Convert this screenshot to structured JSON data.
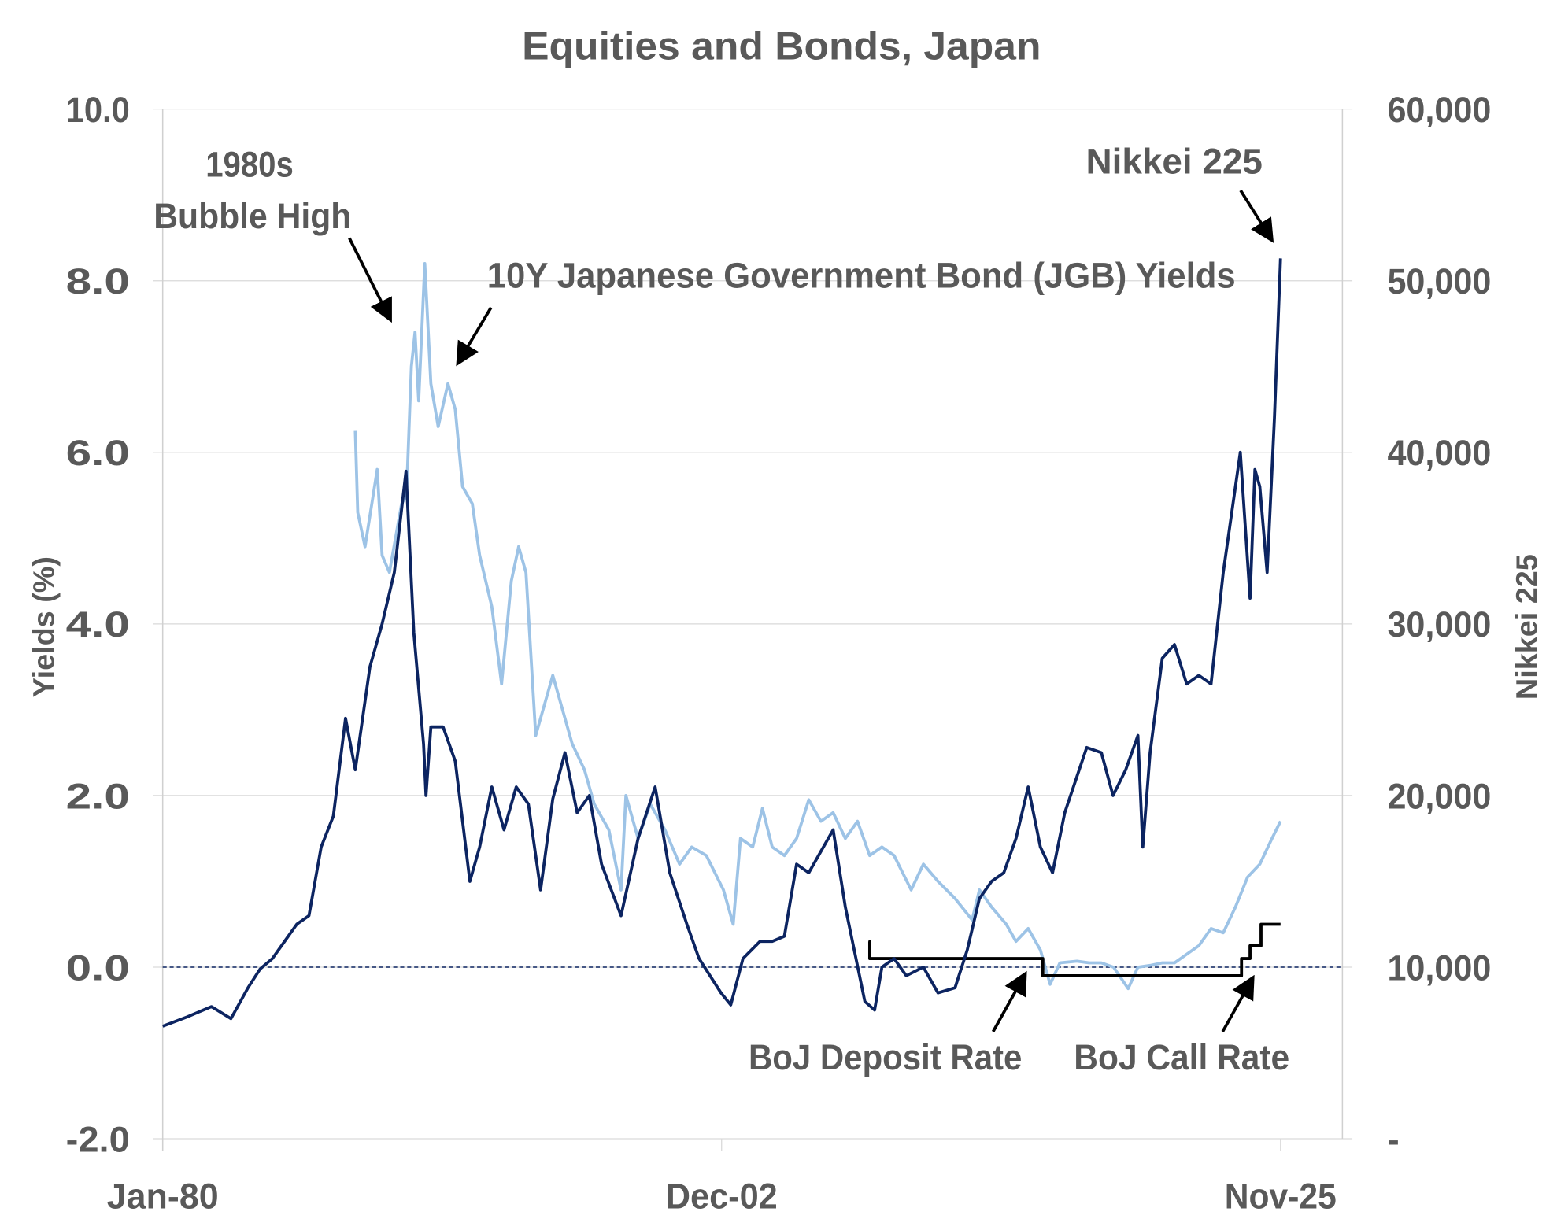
{
  "chart_data": {
    "type": "line",
    "title": "Equities and Bonds, Japan",
    "ylabel": "Yields  (%)",
    "y2label": "Nikkei  225",
    "ylim": [
      -2,
      10
    ],
    "y2lim": [
      0,
      60000
    ],
    "yticks": [
      "10.0",
      "8.0",
      "6.0",
      "4.0",
      "2.0",
      "0.0",
      "-2.0"
    ],
    "y2ticks": [
      "60,000",
      "50,000",
      "40,000",
      "30,000",
      "20,000",
      "10,000",
      "-"
    ],
    "xticks": [
      "Jan-80",
      "Dec-02",
      "Nov-25"
    ],
    "xrange_years": [
      1980.0,
      2025.85
    ],
    "grid": true,
    "zero_line": "dashed",
    "annotations": {
      "bubble_line1": "1980s",
      "bubble_line2": "Bubble High",
      "jgb": "10Y Japanese Government Bond (JGB) Yields",
      "nikkei": "Nikkei  225",
      "deposit": "BoJ Deposit Rate",
      "call": "BoJ Call Rate"
    },
    "colors": {
      "nikkei": "#0c2461",
      "jgb": "#9dc3e6",
      "boj": "#000000",
      "text": "#595959"
    },
    "series": [
      {
        "name": "Nikkei 225",
        "axis": "right",
        "points": [
          [
            1980.0,
            6560
          ],
          [
            1981.0,
            7100
          ],
          [
            1982.0,
            7700
          ],
          [
            1982.8,
            7000
          ],
          [
            1983.5,
            8800
          ],
          [
            1984.0,
            9900
          ],
          [
            1984.5,
            10500
          ],
          [
            1985.0,
            11500
          ],
          [
            1985.5,
            12500
          ],
          [
            1986.0,
            13000
          ],
          [
            1986.5,
            17000
          ],
          [
            1987.0,
            18800
          ],
          [
            1987.5,
            24500
          ],
          [
            1987.9,
            21500
          ],
          [
            1988.5,
            27500
          ],
          [
            1989.0,
            30000
          ],
          [
            1989.5,
            33000
          ],
          [
            1989.98,
            38900
          ],
          [
            1990.3,
            29500
          ],
          [
            1990.7,
            23000
          ],
          [
            1990.8,
            20000
          ],
          [
            1991.0,
            24000
          ],
          [
            1991.5,
            24000
          ],
          [
            1992.0,
            22000
          ],
          [
            1992.6,
            15000
          ],
          [
            1993.0,
            17000
          ],
          [
            1993.5,
            20500
          ],
          [
            1994.0,
            18000
          ],
          [
            1994.5,
            20500
          ],
          [
            1995.0,
            19500
          ],
          [
            1995.5,
            14500
          ],
          [
            1996.0,
            19800
          ],
          [
            1996.5,
            22500
          ],
          [
            1997.0,
            19000
          ],
          [
            1997.5,
            20000
          ],
          [
            1998.0,
            16000
          ],
          [
            1998.8,
            13000
          ],
          [
            1999.5,
            17500
          ],
          [
            2000.2,
            20500
          ],
          [
            2000.8,
            15500
          ],
          [
            2001.5,
            12500
          ],
          [
            2002.0,
            10500
          ],
          [
            2002.9,
            8500
          ],
          [
            2003.3,
            7800
          ],
          [
            2003.8,
            10500
          ],
          [
            2004.5,
            11500
          ],
          [
            2005.0,
            11500
          ],
          [
            2005.5,
            11800
          ],
          [
            2006.0,
            16000
          ],
          [
            2006.5,
            15500
          ],
          [
            2007.5,
            18000
          ],
          [
            2008.0,
            13500
          ],
          [
            2008.8,
            8000
          ],
          [
            2009.2,
            7500
          ],
          [
            2009.5,
            10000
          ],
          [
            2010.0,
            10500
          ],
          [
            2010.5,
            9500
          ],
          [
            2011.2,
            10000
          ],
          [
            2011.8,
            8500
          ],
          [
            2012.5,
            8800
          ],
          [
            2013.0,
            11000
          ],
          [
            2013.5,
            14000
          ],
          [
            2014.0,
            15000
          ],
          [
            2014.5,
            15500
          ],
          [
            2015.0,
            17500
          ],
          [
            2015.5,
            20500
          ],
          [
            2016.0,
            17000
          ],
          [
            2016.5,
            15500
          ],
          [
            2017.0,
            19000
          ],
          [
            2017.9,
            22800
          ],
          [
            2018.5,
            22500
          ],
          [
            2018.98,
            20000
          ],
          [
            2019.5,
            21500
          ],
          [
            2020.0,
            23500
          ],
          [
            2020.2,
            17000
          ],
          [
            2020.5,
            22500
          ],
          [
            2021.0,
            28000
          ],
          [
            2021.5,
            28800
          ],
          [
            2022.0,
            26500
          ],
          [
            2022.5,
            27000
          ],
          [
            2023.0,
            26500
          ],
          [
            2023.5,
            33000
          ],
          [
            2024.2,
            40000
          ],
          [
            2024.6,
            31500
          ],
          [
            2024.8,
            39000
          ],
          [
            2025.0,
            38000
          ],
          [
            2025.3,
            33000
          ],
          [
            2025.6,
            42000
          ],
          [
            2025.85,
            51300
          ]
        ]
      },
      {
        "name": "10Y JGB Yield (%)",
        "axis": "left",
        "points": [
          [
            1987.9,
            6.25
          ],
          [
            1988.0,
            5.3
          ],
          [
            1988.3,
            4.9
          ],
          [
            1988.8,
            5.8
          ],
          [
            1989.0,
            4.8
          ],
          [
            1989.3,
            4.6
          ],
          [
            1989.8,
            5.4
          ],
          [
            1990.0,
            5.5
          ],
          [
            1990.2,
            7.0
          ],
          [
            1990.35,
            7.4
          ],
          [
            1990.5,
            6.6
          ],
          [
            1990.75,
            8.2
          ],
          [
            1991.0,
            6.8
          ],
          [
            1991.3,
            6.3
          ],
          [
            1991.7,
            6.8
          ],
          [
            1992.0,
            6.5
          ],
          [
            1992.3,
            5.6
          ],
          [
            1992.7,
            5.4
          ],
          [
            1993.0,
            4.8
          ],
          [
            1993.5,
            4.2
          ],
          [
            1993.9,
            3.3
          ],
          [
            1994.3,
            4.5
          ],
          [
            1994.6,
            4.9
          ],
          [
            1994.9,
            4.6
          ],
          [
            1995.3,
            2.7
          ],
          [
            1995.7,
            3.1
          ],
          [
            1996.0,
            3.4
          ],
          [
            1996.4,
            3.0
          ],
          [
            1996.8,
            2.6
          ],
          [
            1997.3,
            2.3
          ],
          [
            1997.7,
            1.9
          ],
          [
            1998.3,
            1.6
          ],
          [
            1998.8,
            0.9
          ],
          [
            1999.0,
            2.0
          ],
          [
            1999.5,
            1.5
          ],
          [
            2000.0,
            1.9
          ],
          [
            2000.6,
            1.6
          ],
          [
            2001.2,
            1.2
          ],
          [
            2001.7,
            1.4
          ],
          [
            2002.3,
            1.3
          ],
          [
            2003.0,
            0.9
          ],
          [
            2003.4,
            0.5
          ],
          [
            2003.7,
            1.5
          ],
          [
            2004.2,
            1.4
          ],
          [
            2004.6,
            1.85
          ],
          [
            2005.0,
            1.4
          ],
          [
            2005.5,
            1.3
          ],
          [
            2006.0,
            1.5
          ],
          [
            2006.5,
            1.95
          ],
          [
            2007.0,
            1.7
          ],
          [
            2007.5,
            1.8
          ],
          [
            2008.0,
            1.5
          ],
          [
            2008.5,
            1.7
          ],
          [
            2009.0,
            1.3
          ],
          [
            2009.5,
            1.4
          ],
          [
            2010.0,
            1.3
          ],
          [
            2010.7,
            0.9
          ],
          [
            2011.2,
            1.2
          ],
          [
            2011.8,
            1.0
          ],
          [
            2012.5,
            0.8
          ],
          [
            2013.2,
            0.55
          ],
          [
            2013.5,
            0.9
          ],
          [
            2014.0,
            0.7
          ],
          [
            2014.6,
            0.5
          ],
          [
            2015.0,
            0.3
          ],
          [
            2015.5,
            0.45
          ],
          [
            2016.0,
            0.2
          ],
          [
            2016.4,
            -0.2
          ],
          [
            2016.8,
            0.05
          ],
          [
            2017.5,
            0.07
          ],
          [
            2018.0,
            0.05
          ],
          [
            2018.5,
            0.05
          ],
          [
            2019.0,
            0.0
          ],
          [
            2019.6,
            -0.25
          ],
          [
            2020.0,
            0.0
          ],
          [
            2020.5,
            0.02
          ],
          [
            2021.0,
            0.05
          ],
          [
            2021.5,
            0.05
          ],
          [
            2022.0,
            0.15
          ],
          [
            2022.5,
            0.25
          ],
          [
            2023.0,
            0.45
          ],
          [
            2023.5,
            0.4
          ],
          [
            2024.0,
            0.7
          ],
          [
            2024.5,
            1.05
          ],
          [
            2025.0,
            1.2
          ],
          [
            2025.5,
            1.5
          ],
          [
            2025.85,
            1.7
          ]
        ]
      },
      {
        "name": "BoJ Deposit / Call Rate (%)",
        "axis": "left",
        "step": true,
        "points": [
          [
            2008.95,
            0.3
          ],
          [
            2009.0,
            0.1
          ],
          [
            2016.1,
            -0.1
          ],
          [
            2024.25,
            0.1
          ],
          [
            2024.6,
            0.25
          ],
          [
            2025.05,
            0.5
          ],
          [
            2025.85,
            0.5
          ]
        ]
      }
    ]
  }
}
